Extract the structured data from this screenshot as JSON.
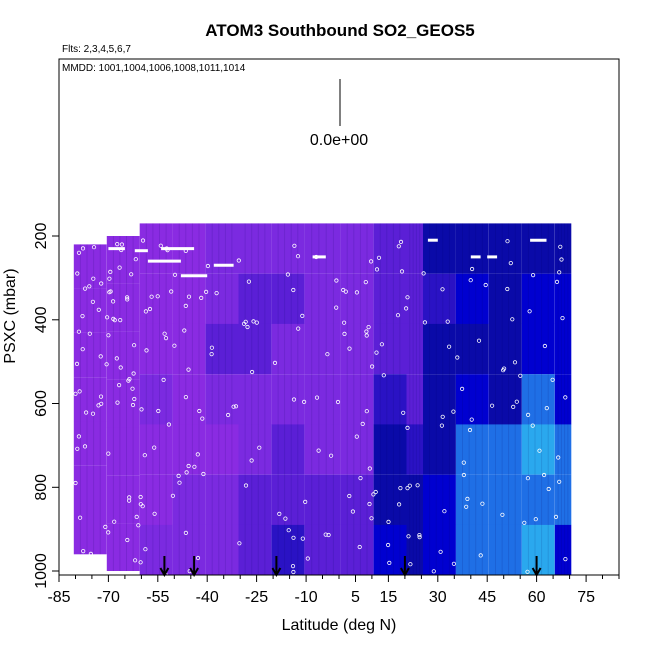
{
  "chart_data": {
    "type": "heatmap",
    "title": "ATOM3 Southbound SO2_GEOS5",
    "flights_note": "Flts: 2,3,4,5,6,7",
    "dates_note": "MMDD: 1001,1004,1006,1008,1011,1014",
    "scale_label": "0.0e+00",
    "xlabel": "Latitude (deg N)",
    "ylabel": "PSXC (mbar)",
    "xlim": [
      -85,
      85
    ],
    "ylim": [
      1010,
      60
    ],
    "y_reversed": true,
    "x_ticks": [
      "-85",
      "-70",
      "-55",
      "-40",
      "-25",
      "-10",
      "5",
      "15",
      "30",
      "45",
      "60",
      "75"
    ],
    "x_tick_values": [
      -85,
      -70,
      -55,
      -40,
      -25,
      -10,
      5,
      15,
      30,
      45,
      60,
      75
    ],
    "y_ticks": [
      "200",
      "400",
      "600",
      "800",
      "1000"
    ],
    "y_tick_values": [
      200,
      400,
      600,
      800,
      1000
    ],
    "data_lat_range": [
      -80,
      70
    ],
    "data_pres_range": [
      170,
      1010
    ],
    "colormap": [
      "#8a2be2",
      "#7b2ae0",
      "#5b1fd6",
      "#2a12c4",
      "#0a0aa8",
      "#0000d0",
      "#1f6fe6",
      "#2aa8ee",
      "#5ad0f5"
    ],
    "background_value_color": "#8a2be2",
    "profile_columns": [
      {
        "lat_start": -80.5,
        "lat_end": -70.5,
        "p_top": 220,
        "p_bottom": 960,
        "values": [
          0,
          0,
          0,
          0,
          0,
          0,
          0
        ]
      },
      {
        "lat_start": -70.5,
        "lat_end": -60.5,
        "p_top": 200,
        "p_bottom": 1000,
        "values": [
          0,
          0,
          0,
          0,
          0,
          0,
          0
        ]
      },
      {
        "lat_start": -60.5,
        "lat_end": -50.5,
        "p_top": 170,
        "p_bottom": 1010,
        "values": [
          0,
          0,
          0,
          0.1,
          0,
          0,
          0.1
        ]
      },
      {
        "lat_start": -50.5,
        "lat_end": -40.5,
        "p_top": 170,
        "p_bottom": 1010,
        "values": [
          0,
          0,
          0,
          0,
          0,
          0.1,
          0.1
        ]
      },
      {
        "lat_start": -40.5,
        "lat_end": -30.5,
        "p_top": 170,
        "p_bottom": 1010,
        "values": [
          0.1,
          0.1,
          0.2,
          0.1,
          0,
          0.1,
          0.1
        ]
      },
      {
        "lat_start": -30.5,
        "lat_end": -20.5,
        "p_top": 170,
        "p_bottom": 1010,
        "values": [
          0.1,
          0.2,
          0.2,
          0.1,
          0.1,
          0.2,
          0.2
        ]
      },
      {
        "lat_start": -20.5,
        "lat_end": -10.5,
        "p_top": 170,
        "p_bottom": 1010,
        "values": [
          0.1,
          0.2,
          0.1,
          0.1,
          0.2,
          0.3,
          0.4
        ]
      },
      {
        "lat_start": -10.5,
        "lat_end": 0.5,
        "p_top": 170,
        "p_bottom": 1010,
        "values": [
          0.1,
          0.1,
          0.1,
          0.1,
          0.1,
          0.2,
          0.3
        ]
      },
      {
        "lat_start": 0.5,
        "lat_end": 10.5,
        "p_top": 170,
        "p_bottom": 1010,
        "values": [
          0.1,
          0.1,
          0.1,
          0.1,
          0.1,
          0.2,
          0.3
        ]
      },
      {
        "lat_start": 10.5,
        "lat_end": 20.5,
        "p_top": 170,
        "p_bottom": 1010,
        "values": [
          0.2,
          0.3,
          0.3,
          0.4,
          0.5,
          0.5,
          0.6
        ]
      },
      {
        "lat_start": 20.5,
        "lat_end": 25.5,
        "p_top": 170,
        "p_bottom": 1010,
        "values": [
          0.2,
          0.3,
          0.3,
          0.3,
          0.4,
          0.5,
          0.5
        ]
      },
      {
        "lat_start": 25.5,
        "lat_end": 35.5,
        "p_top": 170,
        "p_bottom": 1010,
        "values": [
          0.5,
          0.4,
          0.5,
          0.5,
          0.5,
          0.6,
          0.6
        ]
      },
      {
        "lat_start": 35.5,
        "lat_end": 45.5,
        "p_top": 170,
        "p_bottom": 1010,
        "values": [
          0.5,
          0.6,
          0.5,
          0.6,
          0.7,
          0.7,
          0.8
        ]
      },
      {
        "lat_start": 45.5,
        "lat_end": 55.5,
        "p_top": 170,
        "p_bottom": 1010,
        "values": [
          0.5,
          0.5,
          0.5,
          0.5,
          0.8,
          0.7,
          0.8
        ]
      },
      {
        "lat_start": 55.5,
        "lat_end": 65.5,
        "p_top": 170,
        "p_bottom": 1010,
        "values": [
          0.5,
          0.6,
          0.6,
          0.8,
          0.9,
          0.8,
          0.9
        ]
      },
      {
        "lat_start": 65.5,
        "lat_end": 70.5,
        "p_top": 170,
        "p_bottom": 1010,
        "values": [
          0.5,
          0.6,
          0.6,
          0.6,
          0.7,
          0.7,
          0.6
        ]
      }
    ],
    "arrow_latitudes": [
      -53,
      -44,
      -19,
      20,
      60
    ],
    "flight_track_markers": "white open circles along each vertical profile",
    "grid": false
  }
}
